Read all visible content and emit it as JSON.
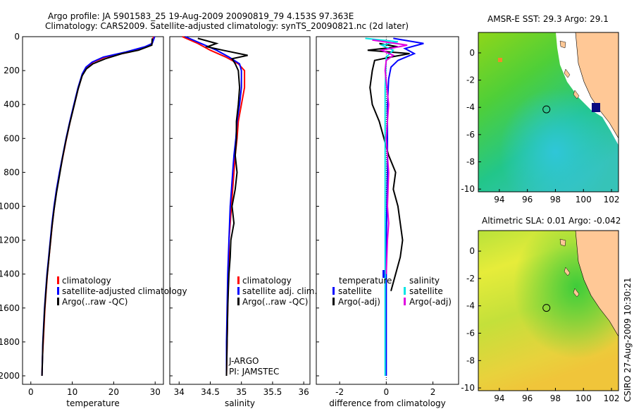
{
  "header": {
    "line1": "Argo profile: JA 5901583_25 19-Aug-2009 20090819_79 4.153S 97.363E",
    "line2": "Climatology: CARS2009. Satellite-adjusted climatology: synTS_20090821.nc (2d later)"
  },
  "credit": "CSIRO 27-Aug-2009 10:30:21",
  "colors": {
    "climatology": "#ff0000",
    "satellite": "#0000ff",
    "argo": "#000000",
    "sat_salinity": "#00e5e5",
    "argo_adj_salinity": "#e000e0",
    "land": "#ffc896"
  },
  "chart_data": [
    {
      "type": "line",
      "name": "temperature-panel",
      "xlabel": "temperature",
      "xlim": [
        -2,
        32
      ],
      "ylim": [
        0,
        2050
      ],
      "y_inverted": true,
      "xticks": [
        "0",
        "10",
        "20",
        "30"
      ],
      "yticks": [
        "0",
        "200",
        "400",
        "600",
        "800",
        "1000",
        "1200",
        "1400",
        "1600",
        "1800",
        "2000"
      ],
      "legend": [
        "climatology",
        "satellite-adjusted climatology",
        "Argo(..raw -QC)"
      ],
      "series": [
        {
          "name": "climatology",
          "color": "#ff0000",
          "points": [
            [
              29.6,
              0
            ],
            [
              29.2,
              40
            ],
            [
              28,
              60
            ],
            [
              24,
              90
            ],
            [
              18,
              120
            ],
            [
              15,
              150
            ],
            [
              13.5,
              180
            ],
            [
              12.5,
              220
            ],
            [
              11.5,
              300
            ],
            [
              10.5,
              400
            ],
            [
              9.5,
              500
            ],
            [
              8.6,
              600
            ],
            [
              7.8,
              700
            ],
            [
              7,
              800
            ],
            [
              6.3,
              900
            ],
            [
              5.7,
              1000
            ],
            [
              5.2,
              1100
            ],
            [
              4.8,
              1200
            ],
            [
              4.4,
              1300
            ],
            [
              4,
              1400
            ],
            [
              3.7,
              1500
            ],
            [
              3.4,
              1600
            ],
            [
              3.2,
              1700
            ],
            [
              3,
              1800
            ],
            [
              2.8,
              1900
            ],
            [
              2.7,
              2000
            ]
          ]
        },
        {
          "name": "satellite-adjusted climatology",
          "color": "#0000ff",
          "points": [
            [
              29.9,
              0
            ],
            [
              29.3,
              40
            ],
            [
              27.5,
              60
            ],
            [
              23,
              90
            ],
            [
              17.5,
              120
            ],
            [
              14.8,
              150
            ],
            [
              13.3,
              180
            ],
            [
              12.4,
              220
            ],
            [
              11.4,
              300
            ],
            [
              10.4,
              400
            ],
            [
              9.4,
              500
            ],
            [
              8.5,
              600
            ],
            [
              7.7,
              700
            ],
            [
              6.9,
              800
            ],
            [
              6.2,
              900
            ],
            [
              5.6,
              1000
            ],
            [
              5.1,
              1100
            ],
            [
              4.7,
              1200
            ],
            [
              4.3,
              1300
            ],
            [
              3.9,
              1400
            ],
            [
              3.6,
              1500
            ],
            [
              3.3,
              1600
            ],
            [
              3.1,
              1700
            ],
            [
              2.9,
              1800
            ],
            [
              2.8,
              1900
            ],
            [
              2.7,
              2000
            ]
          ]
        },
        {
          "name": "Argo(..raw -QC)",
          "color": "#000000",
          "points": [
            [
              29.3,
              10
            ],
            [
              29.2,
              50
            ],
            [
              26,
              80
            ],
            [
              22,
              100
            ],
            [
              18,
              130
            ],
            [
              15,
              160
            ],
            [
              13.4,
              190
            ],
            [
              12.4,
              230
            ],
            [
              11.4,
              310
            ],
            [
              10.3,
              420
            ],
            [
              9.3,
              520
            ],
            [
              8.4,
              620
            ],
            [
              7.6,
              720
            ],
            [
              6.9,
              820
            ],
            [
              6.2,
              920
            ],
            [
              5.6,
              1020
            ],
            [
              5.1,
              1120
            ],
            [
              4.7,
              1220
            ],
            [
              4.3,
              1320
            ],
            [
              3.9,
              1420
            ],
            [
              3.6,
              1520
            ],
            [
              3.3,
              1620
            ],
            [
              3.1,
              1720
            ],
            [
              2.9,
              1820
            ],
            [
              2.8,
              1920
            ],
            [
              2.7,
              2000
            ]
          ]
        }
      ]
    },
    {
      "type": "line",
      "name": "salinity-panel",
      "xlabel": "salinity",
      "xlim": [
        33.85,
        36.1
      ],
      "ylim": [
        0,
        2050
      ],
      "y_inverted": true,
      "xticks": [
        "34",
        "34.5",
        "35",
        "35.5",
        "36"
      ],
      "legend": [
        "climatology",
        "satellite adj. clim.",
        "Argo(..raw -QC)"
      ],
      "annotation": [
        "J-ARGO",
        "PI: JAMSTEC"
      ],
      "series": [
        {
          "name": "climatology",
          "color": "#ff0000",
          "points": [
            [
              34.05,
              0
            ],
            [
              34.3,
              40
            ],
            [
              34.5,
              80
            ],
            [
              34.75,
              120
            ],
            [
              34.95,
              160
            ],
            [
              35.05,
              200
            ],
            [
              35.05,
              300
            ],
            [
              35.0,
              400
            ],
            [
              34.95,
              500
            ],
            [
              34.93,
              600
            ],
            [
              34.9,
              700
            ],
            [
              34.88,
              800
            ],
            [
              34.86,
              900
            ],
            [
              34.84,
              1000
            ],
            [
              34.82,
              1100
            ],
            [
              34.8,
              1200
            ],
            [
              34.8,
              1300
            ],
            [
              34.79,
              1400
            ],
            [
              34.78,
              1600
            ],
            [
              34.77,
              1800
            ],
            [
              34.76,
              2000
            ]
          ]
        },
        {
          "name": "satellite adj. clim.",
          "color": "#0000ff",
          "points": [
            [
              34.1,
              0
            ],
            [
              34.35,
              40
            ],
            [
              34.6,
              80
            ],
            [
              34.8,
              120
            ],
            [
              34.97,
              160
            ],
            [
              35.0,
              200
            ],
            [
              35.0,
              300
            ],
            [
              34.97,
              400
            ],
            [
              34.93,
              500
            ],
            [
              34.91,
              600
            ],
            [
              34.88,
              700
            ],
            [
              34.86,
              800
            ],
            [
              34.84,
              900
            ],
            [
              34.82,
              1000
            ],
            [
              34.81,
              1100
            ],
            [
              34.8,
              1200
            ],
            [
              34.79,
              1300
            ],
            [
              34.78,
              1400
            ],
            [
              34.77,
              1600
            ],
            [
              34.76,
              1800
            ],
            [
              34.76,
              2000
            ]
          ]
        },
        {
          "name": "Argo(..raw -QC)",
          "color": "#000000",
          "points": [
            [
              34.3,
              10
            ],
            [
              34.6,
              40
            ],
            [
              34.45,
              60
            ],
            [
              34.7,
              80
            ],
            [
              35.1,
              110
            ],
            [
              34.85,
              130
            ],
            [
              34.9,
              160
            ],
            [
              34.95,
              200
            ],
            [
              34.97,
              300
            ],
            [
              34.95,
              400
            ],
            [
              34.92,
              500
            ],
            [
              34.92,
              600
            ],
            [
              34.9,
              700
            ],
            [
              34.93,
              800
            ],
            [
              34.9,
              900
            ],
            [
              34.85,
              1000
            ],
            [
              34.88,
              1100
            ],
            [
              34.83,
              1200
            ],
            [
              34.82,
              1300
            ],
            [
              34.8,
              1400
            ],
            [
              34.79,
              1500
            ],
            [
              34.78,
              1600
            ],
            [
              34.77,
              1800
            ],
            [
              34.76,
              2000
            ]
          ]
        }
      ]
    },
    {
      "type": "line",
      "name": "difference-panel",
      "xlabel": "difference from climatology",
      "xlim": [
        -3,
        3.1
      ],
      "ylim": [
        0,
        2050
      ],
      "y_inverted": true,
      "xticks": [
        "-2",
        "0",
        "2"
      ],
      "legend_temperature_heading": "temperature",
      "legend_salinity_heading": "salinity",
      "legend_temperature": [
        "satellite",
        "Argo(-adj)"
      ],
      "legend_salinity": [
        "satellite",
        "Argo(-adj)"
      ],
      "series": [
        {
          "name": "temperature satellite",
          "color": "#0000ff",
          "points": [
            [
              0.3,
              10
            ],
            [
              1.6,
              40
            ],
            [
              0.8,
              70
            ],
            [
              1.2,
              100
            ],
            [
              0.5,
              140
            ],
            [
              0.2,
              180
            ],
            [
              0.1,
              250
            ],
            [
              0.05,
              400
            ],
            [
              0.05,
              800
            ],
            [
              0.0,
              1200
            ],
            [
              0.0,
              1600
            ],
            [
              0.0,
              2000
            ]
          ]
        },
        {
          "name": "temperature Argo(-adj)",
          "color": "#000000",
          "points": [
            [
              -0.3,
              40
            ],
            [
              0.5,
              60
            ],
            [
              -0.8,
              80
            ],
            [
              1.0,
              100
            ],
            [
              0.2,
              120
            ],
            [
              -0.5,
              140
            ],
            [
              -0.6,
              200
            ],
            [
              -0.7,
              300
            ],
            [
              -0.6,
              400
            ],
            [
              -0.3,
              500
            ],
            [
              0.1,
              700
            ],
            [
              0.4,
              800
            ],
            [
              0.3,
              900
            ],
            [
              0.5,
              1000
            ],
            [
              0.6,
              1100
            ],
            [
              0.7,
              1200
            ],
            [
              0.6,
              1300
            ],
            [
              0.4,
              1400
            ],
            [
              0.2,
              1500
            ]
          ]
        },
        {
          "name": "salinity satellite",
          "color": "#00e5e5",
          "points": [
            [
              -0.9,
              10
            ],
            [
              0.5,
              30
            ],
            [
              -0.2,
              50
            ],
            [
              0.3,
              80
            ],
            [
              0.0,
              120
            ],
            [
              -0.05,
              300
            ],
            [
              -0.05,
              800
            ],
            [
              -0.05,
              1400
            ],
            [
              -0.05,
              2000
            ]
          ]
        },
        {
          "name": "salinity Argo(-adj)",
          "color": "#e000e0",
          "points": [
            [
              -0.6,
              20
            ],
            [
              0.9,
              50
            ],
            [
              -0.2,
              80
            ],
            [
              0.3,
              110
            ],
            [
              0.0,
              140
            ],
            [
              -0.05,
              200
            ],
            [
              0.1,
              400
            ],
            [
              0.0,
              600
            ],
            [
              0.1,
              800
            ],
            [
              0.05,
              1000
            ],
            [
              0.1,
              1100
            ],
            [
              0.05,
              1200
            ],
            [
              0.0,
              1400
            ]
          ]
        }
      ]
    },
    {
      "type": "heatmap",
      "name": "sst-map",
      "title": "AMSR-E SST: 29.3 Argo: 29.1",
      "xticks": [
        "94",
        "96",
        "98",
        "100",
        "102"
      ],
      "yticks": [
        "0",
        "-2",
        "-4",
        "-6",
        "-8",
        "-10"
      ],
      "xlim": [
        92.5,
        102.5
      ],
      "ylim": [
        -10.2,
        1.5
      ],
      "argo_marker": [
        97.36,
        -4.15
      ]
    },
    {
      "type": "heatmap",
      "name": "sla-map",
      "title": "Altimetric SLA: 0.01 Argo: -0.042",
      "xticks": [
        "94",
        "96",
        "98",
        "100",
        "102"
      ],
      "yticks": [
        "0",
        "-2",
        "-4",
        "-6",
        "-8",
        "-10"
      ],
      "xlim": [
        92.5,
        102.5
      ],
      "ylim": [
        -10.2,
        1.5
      ],
      "argo_marker": [
        97.36,
        -4.15
      ]
    }
  ]
}
